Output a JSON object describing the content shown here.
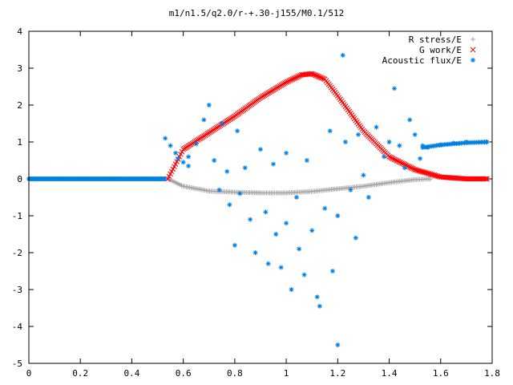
{
  "chart_data": {
    "type": "scatter",
    "title": "m1/n1.5/q2.0/r-+.30-j155/M0.1/512",
    "xlabel": "",
    "ylabel": "",
    "xlim": [
      0,
      1.8
    ],
    "ylim": [
      -5,
      4
    ],
    "xticks": [
      "0",
      "0.2",
      "0.4",
      "0.6",
      "0.8",
      "1",
      "1.2",
      "1.4",
      "1.6",
      "1.8"
    ],
    "yticks": [
      "4",
      "3",
      "2",
      "1",
      "0",
      "-1",
      "-2",
      "-3",
      "-4",
      "-5"
    ],
    "grid": false,
    "legend_position": "top-right",
    "series": [
      {
        "name": "R stress/E",
        "marker": "+",
        "color": "#a0a0a0",
        "x": [
          0.54,
          0.6,
          0.7,
          0.8,
          0.9,
          1.0,
          1.1,
          1.2,
          1.3,
          1.4,
          1.5,
          1.56
        ],
        "y": [
          0.0,
          -0.2,
          -0.33,
          -0.36,
          -0.38,
          -0.38,
          -0.34,
          -0.27,
          -0.2,
          -0.1,
          -0.02,
          0.0
        ]
      },
      {
        "name": "G work/E",
        "marker": "x",
        "color": "#ff0000",
        "x": [
          0.54,
          0.6,
          0.7,
          0.8,
          0.9,
          1.0,
          1.06,
          1.1,
          1.15,
          1.2,
          1.3,
          1.4,
          1.5,
          1.6,
          1.7,
          1.78
        ],
        "y": [
          0.0,
          0.8,
          1.25,
          1.7,
          2.2,
          2.62,
          2.82,
          2.85,
          2.7,
          2.25,
          1.3,
          0.6,
          0.25,
          0.05,
          0.0,
          0.0
        ]
      },
      {
        "name": "Acoustic flux/E",
        "marker": "*",
        "color": "#0080e0",
        "points": [
          [
            0.0,
            0.0
          ],
          [
            0.53,
            1.1
          ],
          [
            0.55,
            0.9
          ],
          [
            0.57,
            0.7
          ],
          [
            0.58,
            0.55
          ],
          [
            0.6,
            0.45
          ],
          [
            0.62,
            0.35
          ],
          [
            0.62,
            0.6
          ],
          [
            0.65,
            0.95
          ],
          [
            0.68,
            1.6
          ],
          [
            0.7,
            2.0
          ],
          [
            0.72,
            0.5
          ],
          [
            0.74,
            -0.3
          ],
          [
            0.75,
            1.5
          ],
          [
            0.77,
            0.2
          ],
          [
            0.78,
            -0.7
          ],
          [
            0.8,
            -1.8
          ],
          [
            0.81,
            1.3
          ],
          [
            0.82,
            -0.4
          ],
          [
            0.84,
            0.3
          ],
          [
            0.86,
            -1.1
          ],
          [
            0.88,
            -2.0
          ],
          [
            0.9,
            0.8
          ],
          [
            0.92,
            -0.9
          ],
          [
            0.93,
            -2.3
          ],
          [
            0.95,
            0.4
          ],
          [
            0.96,
            -1.5
          ],
          [
            0.98,
            -2.4
          ],
          [
            1.0,
            0.7
          ],
          [
            1.0,
            -1.2
          ],
          [
            1.02,
            -3.0
          ],
          [
            1.04,
            -0.5
          ],
          [
            1.05,
            -1.9
          ],
          [
            1.07,
            -2.6
          ],
          [
            1.08,
            0.5
          ],
          [
            1.1,
            -1.4
          ],
          [
            1.12,
            -3.2
          ],
          [
            1.13,
            -3.45
          ],
          [
            1.15,
            -0.8
          ],
          [
            1.17,
            1.3
          ],
          [
            1.18,
            -2.5
          ],
          [
            1.2,
            -1.0
          ],
          [
            1.2,
            -4.5
          ],
          [
            1.22,
            3.35
          ],
          [
            1.23,
            1.0
          ],
          [
            1.25,
            -0.3
          ],
          [
            1.27,
            -1.6
          ],
          [
            1.28,
            1.2
          ],
          [
            1.3,
            0.1
          ],
          [
            1.32,
            -0.5
          ],
          [
            1.35,
            1.4
          ],
          [
            1.38,
            0.6
          ],
          [
            1.4,
            1.0
          ],
          [
            1.42,
            2.45
          ],
          [
            1.44,
            0.9
          ],
          [
            1.46,
            0.3
          ],
          [
            1.48,
            1.6
          ],
          [
            1.5,
            1.2
          ],
          [
            1.52,
            0.55
          ],
          [
            1.53,
            0.9
          ],
          [
            1.55,
            0.85
          ],
          [
            1.6,
            0.92
          ],
          [
            1.65,
            0.97
          ],
          [
            1.7,
            1.0
          ],
          [
            1.78,
            1.0
          ]
        ]
      }
    ]
  }
}
